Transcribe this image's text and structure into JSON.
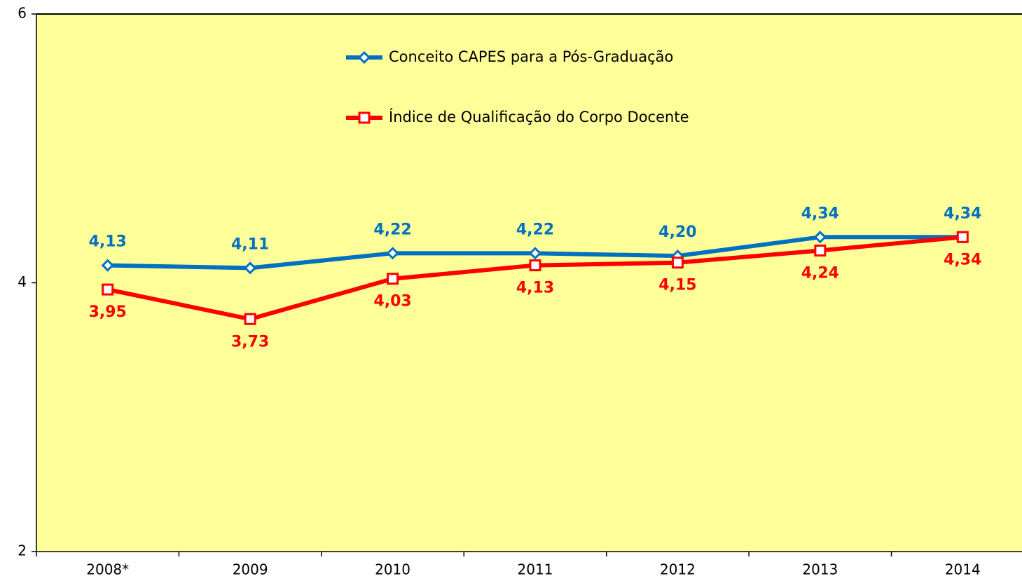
{
  "chart_data": {
    "type": "line",
    "categories": [
      "2008*",
      "2009",
      "2010",
      "2011",
      "2012",
      "2013",
      "2014"
    ],
    "series": [
      {
        "name": "Conceito CAPES para a Pós-Graduação",
        "color": "#0070c0",
        "marker": "diamond",
        "values": [
          4.13,
          4.11,
          4.22,
          4.22,
          4.2,
          4.34,
          4.34
        ],
        "value_labels": [
          "4,13",
          "4,11",
          "4,22",
          "4,22",
          "4,20",
          "4,34",
          "4,34"
        ]
      },
      {
        "name": "Índice de Qualificação do Corpo Docente",
        "color": "#ff0000",
        "marker": "square",
        "values": [
          3.95,
          3.73,
          4.03,
          4.13,
          4.15,
          4.24,
          4.34
        ],
        "value_labels": [
          "3,95",
          "3,73",
          "4,03",
          "4,13",
          "4,15",
          "4,24",
          "4,34"
        ]
      }
    ],
    "ylim": [
      2,
      6
    ],
    "yticks": [
      2,
      4,
      6
    ],
    "legend": "top",
    "background": "#ffff99"
  }
}
